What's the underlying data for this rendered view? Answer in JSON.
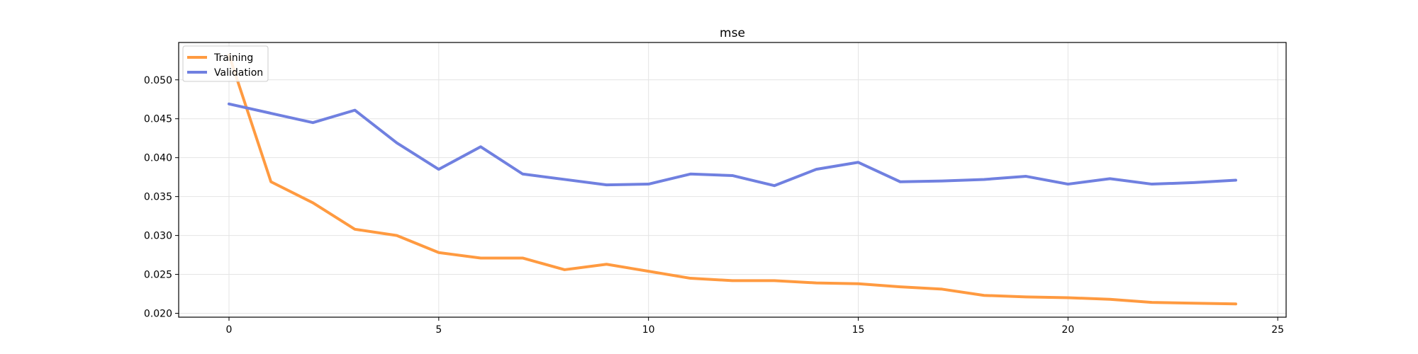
{
  "chart_data": {
    "type": "line",
    "title": "mse",
    "xlabel": "",
    "ylabel": "",
    "xlim": [
      -1.2,
      25.2
    ],
    "ylim": [
      0.0195,
      0.0548
    ],
    "xticks": [
      0,
      5,
      10,
      15,
      20,
      25
    ],
    "yticks": [
      0.02,
      0.025,
      0.03,
      0.035,
      0.04,
      0.045,
      0.05
    ],
    "xtick_labels": [
      "0",
      "5",
      "10",
      "15",
      "20",
      "25"
    ],
    "ytick_labels": [
      "0.020",
      "0.025",
      "0.030",
      "0.035",
      "0.040",
      "0.045",
      "0.050"
    ],
    "grid": true,
    "legend_position": "top-left",
    "x": [
      0,
      1,
      2,
      3,
      4,
      5,
      6,
      7,
      8,
      9,
      10,
      11,
      12,
      13,
      14,
      15,
      16,
      17,
      18,
      19,
      20,
      21,
      22,
      23,
      24
    ],
    "series": [
      {
        "name": "Training",
        "color": "#ff9a40",
        "values": [
          0.0532,
          0.0369,
          0.0342,
          0.0308,
          0.03,
          0.0278,
          0.0271,
          0.0271,
          0.0256,
          0.0263,
          0.0254,
          0.0245,
          0.0242,
          0.0242,
          0.0239,
          0.0238,
          0.0234,
          0.0231,
          0.0223,
          0.0221,
          0.022,
          0.0218,
          0.0214,
          0.0213,
          0.0212
        ]
      },
      {
        "name": "Validation",
        "color": "#7080e0",
        "values": [
          0.0469,
          0.0457,
          0.0445,
          0.0461,
          0.0419,
          0.0385,
          0.0414,
          0.0379,
          0.0372,
          0.0365,
          0.0366,
          0.0379,
          0.0377,
          0.0364,
          0.0385,
          0.0394,
          0.0369,
          0.037,
          0.0372,
          0.0376,
          0.0366,
          0.0373,
          0.0366,
          0.0368,
          0.0371
        ]
      }
    ]
  }
}
